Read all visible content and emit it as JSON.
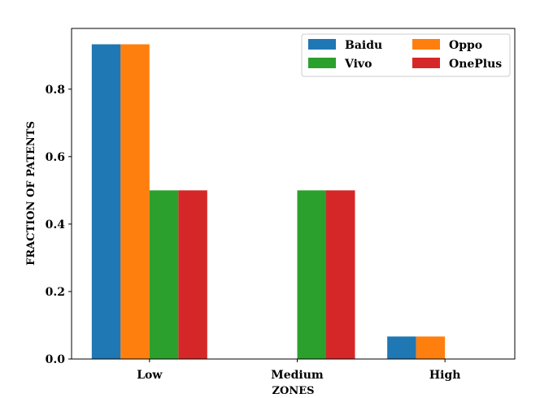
{
  "chart_data": {
    "type": "bar",
    "categories": [
      "Low",
      "Medium",
      "High"
    ],
    "series": [
      {
        "name": "Baidu",
        "color": "#1f77b4",
        "values": [
          0.933,
          0.0,
          0.0667
        ]
      },
      {
        "name": "Oppo",
        "color": "#ff7f0e",
        "values": [
          0.933,
          0.0,
          0.0667
        ]
      },
      {
        "name": "Vivo",
        "color": "#2ca02c",
        "values": [
          0.5,
          0.5,
          0.0
        ]
      },
      {
        "name": "OnePlus",
        "color": "#d62728",
        "values": [
          0.5,
          0.5,
          0.0
        ]
      }
    ],
    "xlabel": "ZONES",
    "ylabel": "FRACTION OF PATENTS",
    "ylim": [
      0,
      0.98
    ],
    "yticks": [
      "0.0",
      "0.2",
      "0.4",
      "0.6",
      "0.8"
    ],
    "grid": false,
    "legend_position": "top-right",
    "legend_columns": 2
  }
}
